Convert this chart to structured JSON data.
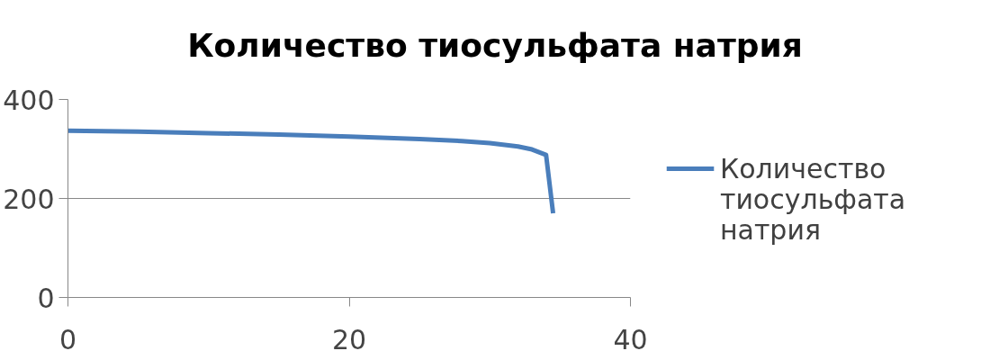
{
  "chart_data": {
    "type": "line",
    "title": "Количество тиосульфата натрия",
    "x": [
      0,
      5,
      10,
      15,
      20,
      25,
      28,
      30,
      32,
      33,
      34,
      34.5
    ],
    "series": [
      {
        "name": "Количество тиосульфата натрия",
        "color": "#4a7ebb",
        "values": [
          337,
          335,
          332,
          329,
          325,
          320,
          316,
          312,
          305,
          299,
          288,
          170
        ]
      }
    ],
    "xlim": [
      0,
      40
    ],
    "xticks": [
      0,
      20,
      40
    ],
    "ylim": [
      0,
      400
    ],
    "yticks": [
      0,
      200,
      400
    ],
    "grid": "y",
    "legend": "right",
    "marker": "none",
    "line_style": "solid"
  }
}
